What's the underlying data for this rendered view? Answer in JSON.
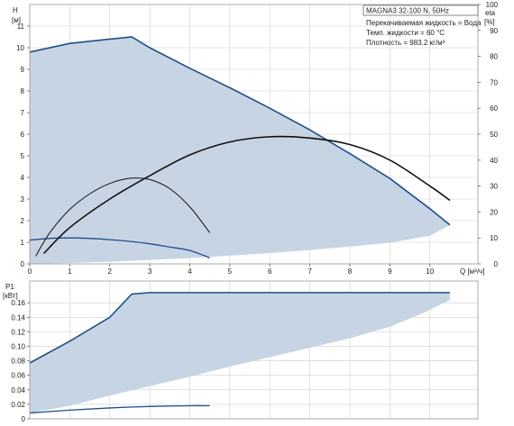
{
  "info": {
    "model": "MAGNA3 32-100 N, 50Hz",
    "liquid": "Перекачиваемая жидкость = Вода",
    "temperature": "Темп. жидкости = 60 °C",
    "density": "Плотность = 983.2 кг/м³"
  },
  "colors": {
    "fill": "#c7d4e4",
    "boundary": "#1f4f88",
    "efficiency": "#111111"
  },
  "chart_data": [
    {
      "type": "line",
      "name": "head-efficiency",
      "xlabel": "Q [м³/ч]",
      "ylabel": "H [м]",
      "y2label": "eta [%]",
      "xlim": [
        0,
        11.2
      ],
      "ylim": [
        0,
        12
      ],
      "y2lim": [
        0,
        100
      ],
      "xticks": [
        0,
        1,
        2,
        3,
        4,
        5,
        6,
        7,
        8,
        9,
        10
      ],
      "yticks": [
        0,
        1,
        2,
        3,
        4,
        5,
        6,
        7,
        8,
        9,
        10,
        11
      ],
      "y2ticks": [
        0,
        10,
        20,
        30,
        40,
        50,
        60,
        70,
        80,
        90,
        100
      ],
      "grid": true,
      "operating_area": {
        "upper": [
          [
            0,
            9.8
          ],
          [
            1,
            10.2
          ],
          [
            2,
            10.4
          ],
          [
            2.55,
            10.5
          ],
          [
            3,
            10.0
          ],
          [
            4,
            9.05
          ],
          [
            5,
            8.15
          ],
          [
            6,
            7.2
          ],
          [
            7,
            6.2
          ],
          [
            8,
            5.1
          ],
          [
            9,
            3.95
          ],
          [
            10,
            2.55
          ],
          [
            10.5,
            1.8
          ]
        ],
        "lower": [
          [
            10.5,
            1.8
          ],
          [
            10,
            1.3
          ],
          [
            9,
            0.98
          ],
          [
            8,
            0.8
          ],
          [
            7,
            0.64
          ],
          [
            6,
            0.5
          ],
          [
            5,
            0.38
          ],
          [
            4,
            0.27
          ],
          [
            3,
            0.18
          ],
          [
            2,
            0.1
          ],
          [
            1,
            0.04
          ],
          [
            0,
            0
          ]
        ]
      },
      "series": [
        {
          "role": "max_head",
          "points": [
            [
              0,
              9.8
            ],
            [
              1,
              10.2
            ],
            [
              2,
              10.4
            ],
            [
              2.55,
              10.5
            ],
            [
              3,
              10.0
            ],
            [
              4,
              9.05
            ],
            [
              5,
              8.15
            ],
            [
              6,
              7.2
            ],
            [
              7,
              6.2
            ],
            [
              8,
              5.1
            ],
            [
              9,
              3.95
            ],
            [
              10,
              2.55
            ],
            [
              10.5,
              1.8
            ]
          ]
        },
        {
          "role": "min_head",
          "points": [
            [
              0,
              1.1
            ],
            [
              0.5,
              1.18
            ],
            [
              1,
              1.2
            ],
            [
              1.5,
              1.18
            ],
            [
              2,
              1.12
            ],
            [
              2.5,
              1.04
            ],
            [
              3,
              0.93
            ],
            [
              3.5,
              0.78
            ],
            [
              4,
              0.62
            ],
            [
              4.5,
              0.28
            ]
          ]
        },
        {
          "role": "efficiency_max",
          "axis": "y2",
          "points": [
            [
              0.35,
              4
            ],
            [
              1,
              14
            ],
            [
              2,
              25
            ],
            [
              3,
              34
            ],
            [
              4,
              42
            ],
            [
              5,
              47
            ],
            [
              6,
              49
            ],
            [
              7,
              48.5
            ],
            [
              8,
              46
            ],
            [
              9,
              40
            ],
            [
              10,
              30
            ],
            [
              10.5,
              24.5
            ]
          ]
        },
        {
          "role": "efficiency_min",
          "axis": "y2",
          "points": [
            [
              0.15,
              3
            ],
            [
              0.5,
              12
            ],
            [
              1,
              21
            ],
            [
              1.5,
              27
            ],
            [
              2,
              31
            ],
            [
              2.5,
              33
            ],
            [
              3,
              32.5
            ],
            [
              3.5,
              29
            ],
            [
              4,
              22
            ],
            [
              4.5,
              12
            ]
          ]
        }
      ]
    },
    {
      "type": "line",
      "name": "power",
      "ylabel": "P1 [кВт]",
      "xlim": [
        0,
        11.2
      ],
      "ylim": [
        0,
        0.19
      ],
      "xticks": [
        0,
        1,
        2,
        3,
        4,
        5,
        6,
        7,
        8,
        9,
        10
      ],
      "yticks": [
        0,
        0.02,
        0.04,
        0.06,
        0.08,
        0.1,
        0.12,
        0.14,
        0.16
      ],
      "grid": true,
      "operating_area": {
        "upper": [
          [
            0,
            0.077
          ],
          [
            1,
            0.107
          ],
          [
            2,
            0.14
          ],
          [
            2.55,
            0.172
          ],
          [
            3,
            0.174
          ],
          [
            4,
            0.174
          ],
          [
            6,
            0.174
          ],
          [
            8,
            0.174
          ],
          [
            10.5,
            0.174
          ]
        ],
        "lower": [
          [
            10.5,
            0.174
          ],
          [
            10.5,
            0.164
          ],
          [
            9.8,
            0.145
          ],
          [
            9,
            0.127
          ],
          [
            8,
            0.111
          ],
          [
            7,
            0.098
          ],
          [
            6,
            0.085
          ],
          [
            5,
            0.072
          ],
          [
            4,
            0.058
          ],
          [
            3,
            0.045
          ],
          [
            2,
            0.032
          ],
          [
            1,
            0.018
          ],
          [
            0,
            0.008
          ]
        ]
      },
      "series": [
        {
          "role": "max_power",
          "points": [
            [
              0,
              0.077
            ],
            [
              1,
              0.107
            ],
            [
              2,
              0.14
            ],
            [
              2.55,
              0.172
            ],
            [
              3,
              0.174
            ],
            [
              4,
              0.174
            ],
            [
              6,
              0.174
            ],
            [
              8,
              0.174
            ],
            [
              10.5,
              0.174
            ]
          ]
        },
        {
          "role": "min_power",
          "points": [
            [
              0,
              0.008
            ],
            [
              1,
              0.012
            ],
            [
              2,
              0.015
            ],
            [
              3,
              0.017
            ],
            [
              4,
              0.018
            ],
            [
              4.5,
              0.018
            ]
          ]
        }
      ]
    }
  ]
}
